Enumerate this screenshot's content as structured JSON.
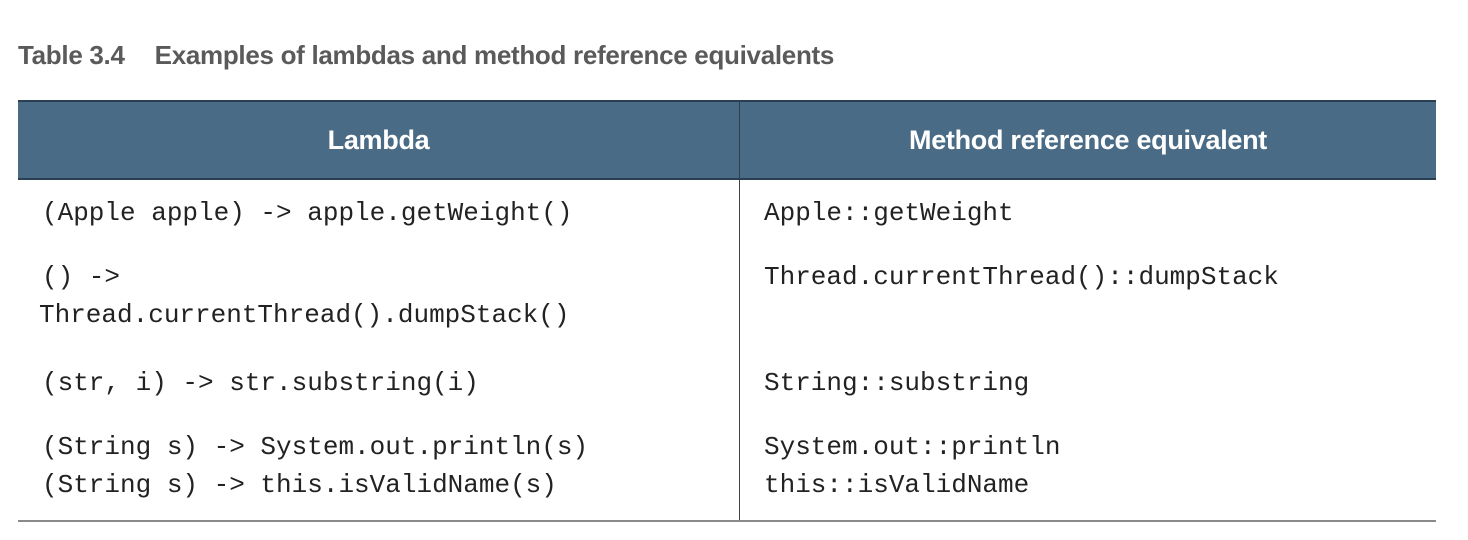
{
  "caption": {
    "number": "Table 3.4",
    "title": "Examples of lambdas and method reference equivalents"
  },
  "columns": {
    "left": "Lambda",
    "right": "Method reference equivalent"
  },
  "rows": [
    {
      "lambda": [
        "(Apple apple) -> apple.getWeight()"
      ],
      "method_ref": [
        "Apple::getWeight"
      ]
    },
    {
      "lambda": [
        "() ->",
        "Thread.currentThread().dumpStack()"
      ],
      "method_ref": [
        "Thread.currentThread()::dumpStack"
      ]
    },
    {
      "lambda": [
        "(str, i) -> str.substring(i)"
      ],
      "method_ref": [
        "String::substring"
      ]
    },
    {
      "lambda": [
        "(String s) -> System.out.println(s)",
        "(String s) -> this.isValidName(s)"
      ],
      "method_ref": [
        "System.out::println",
        "this::isValidName"
      ]
    }
  ]
}
